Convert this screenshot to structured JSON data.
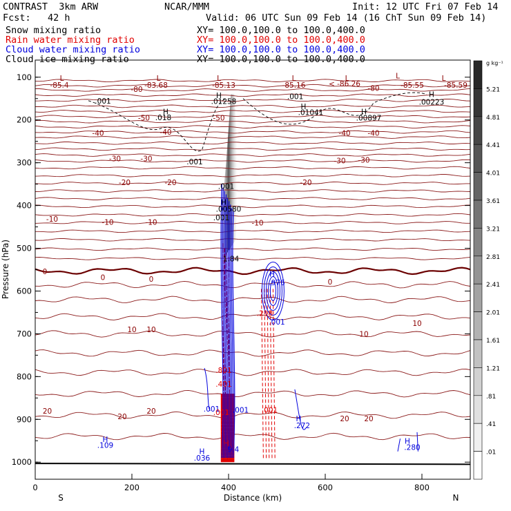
{
  "header": {
    "model": "CONTRAST  3km ARW",
    "center": "NCAR/MMM",
    "init": "Init: 12 UTC Fri 07 Feb 14",
    "fcst": "Fcst:   42 h",
    "valid": "Valid: 06 UTC Sun 09 Feb 14 (16 ChT Sun 09 Feb 14)",
    "fields": [
      {
        "name": "Snow mixing ratio",
        "xy": "XY= 100.0,100.0 to 100.0,400.0",
        "color": "#000000"
      },
      {
        "name": "Rain water mixing ratio",
        "xy": "XY= 100.0,100.0 to 100.0,400.0",
        "color": "#e00000"
      },
      {
        "name": "Cloud water mixing ratio",
        "xy": "XY= 100.0,100.0 to 100.0,400.0",
        "color": "#0000dd"
      },
      {
        "name": "Cloud ice mixing ratio",
        "xy": "XY= 100.0,100.0 to 100.0,400.0",
        "color": "#000000"
      }
    ]
  },
  "chart_data": {
    "type": "heatmap",
    "xlabel": "Distance (km)",
    "ylabel": "Pressure (hPa)",
    "xlim": [
      0,
      900
    ],
    "ylim": [
      1040,
      60
    ],
    "x_ticks": [
      "0",
      "200",
      "400",
      "600",
      "800"
    ],
    "y_ticks": [
      "100",
      "200",
      "300",
      "400",
      "500",
      "600",
      "700",
      "800",
      "900",
      "1000"
    ],
    "x_tick_values": [
      0,
      200,
      400,
      600,
      800
    ],
    "y_tick_values": [
      100,
      200,
      300,
      400,
      500,
      600,
      700,
      800,
      900,
      1000
    ],
    "left_end_label": "S",
    "right_end_label": "N",
    "colorbar": {
      "unit": "g kg⁻¹",
      "levels": [
        "5.21",
        "4.81",
        "4.41",
        "4.01",
        "3.61",
        "3.21",
        "2.81",
        "2.41",
        "2.01",
        "1.61",
        "1.21",
        ".81",
        ".41",
        ".01"
      ]
    },
    "temperature_labels": [
      {
        "x": 50,
        "p": 118,
        "text": "-85.4"
      },
      {
        "x": 250,
        "p": 118,
        "text": "-83.68"
      },
      {
        "x": 390,
        "p": 118,
        "text": "-85.13"
      },
      {
        "x": 535,
        "p": 118,
        "text": "-85.16"
      },
      {
        "x": 640,
        "p": 115,
        "text": "< -86.26"
      },
      {
        "x": 780,
        "p": 118,
        "text": "-85.55"
      },
      {
        "x": 870,
        "p": 118,
        "text": "-85.59"
      },
      {
        "x": 210,
        "p": 128,
        "text": "-80"
      },
      {
        "x": 700,
        "p": 125,
        "text": "-80"
      },
      {
        "x": 225,
        "p": 195,
        "text": "-50"
      },
      {
        "x": 380,
        "p": 195,
        "text": "-50"
      },
      {
        "x": 130,
        "p": 230,
        "text": "-40"
      },
      {
        "x": 270,
        "p": 228,
        "text": "-40"
      },
      {
        "x": 640,
        "p": 230,
        "text": "-40"
      },
      {
        "x": 700,
        "p": 230,
        "text": "-40"
      },
      {
        "x": 165,
        "p": 290,
        "text": "-30"
      },
      {
        "x": 230,
        "p": 290,
        "text": "-30"
      },
      {
        "x": 630,
        "p": 295,
        "text": "-30"
      },
      {
        "x": 680,
        "p": 293,
        "text": "-30"
      },
      {
        "x": 185,
        "p": 346,
        "text": "-20"
      },
      {
        "x": 280,
        "p": 346,
        "text": "-20"
      },
      {
        "x": 560,
        "p": 346,
        "text": "-20"
      },
      {
        "x": 35,
        "p": 431,
        "text": "-10"
      },
      {
        "x": 150,
        "p": 439,
        "text": "-10"
      },
      {
        "x": 240,
        "p": 439,
        "text": "-10"
      },
      {
        "x": 460,
        "p": 440,
        "text": "-10"
      },
      {
        "x": 20,
        "p": 554,
        "text": "0"
      },
      {
        "x": 140,
        "p": 568,
        "text": "0"
      },
      {
        "x": 240,
        "p": 572,
        "text": "0"
      },
      {
        "x": 610,
        "p": 578,
        "text": "0"
      },
      {
        "x": 200,
        "p": 690,
        "text": "10"
      },
      {
        "x": 240,
        "p": 690,
        "text": "10"
      },
      {
        "x": 680,
        "p": 700,
        "text": "10"
      },
      {
        "x": 790,
        "p": 675,
        "text": "10"
      },
      {
        "x": 25,
        "p": 880,
        "text": "20"
      },
      {
        "x": 180,
        "p": 893,
        "text": "20"
      },
      {
        "x": 240,
        "p": 880,
        "text": "20"
      },
      {
        "x": 640,
        "p": 898,
        "text": "20"
      },
      {
        "x": 690,
        "p": 898,
        "text": "20"
      }
    ],
    "extrema_labels": [
      {
        "x": 55,
        "p": 102,
        "text": "L",
        "color": "#8b0000"
      },
      {
        "x": 255,
        "p": 102,
        "text": "L",
        "color": "#8b0000"
      },
      {
        "x": 380,
        "p": 102,
        "text": "L",
        "color": "#8b0000"
      },
      {
        "x": 535,
        "p": 102,
        "text": "L",
        "color": "#8b0000"
      },
      {
        "x": 645,
        "p": 102,
        "text": "L",
        "color": "#8b0000"
      },
      {
        "x": 750,
        "p": 96,
        "text": "L",
        "color": "#8b0000"
      },
      {
        "x": 845,
        "p": 102,
        "text": "L",
        "color": "#8b0000"
      },
      {
        "x": 380,
        "p": 142,
        "text": "H",
        "color": "#000000"
      },
      {
        "x": 390,
        "p": 156,
        "text": ".01258",
        "color": "#000000"
      },
      {
        "x": 820,
        "p": 140,
        "text": "H",
        "color": "#000000"
      },
      {
        "x": 820,
        "p": 158,
        "text": ".00223",
        "color": "#000000"
      },
      {
        "x": 555,
        "p": 168,
        "text": "H",
        "color": "#000000"
      },
      {
        "x": 570,
        "p": 182,
        "text": ".01041",
        "color": "#000000"
      },
      {
        "x": 680,
        "p": 180,
        "text": "H",
        "color": "#000000"
      },
      {
        "x": 690,
        "p": 195,
        "text": ".00897",
        "color": "#000000"
      },
      {
        "x": 270,
        "p": 180,
        "text": "H",
        "color": "#000000"
      },
      {
        "x": 265,
        "p": 194,
        "text": ".018",
        "color": "#000000"
      },
      {
        "x": 140,
        "p": 155,
        "text": ".001",
        "color": "#000000"
      },
      {
        "x": 330,
        "p": 297,
        "text": ".001",
        "color": "#000000"
      },
      {
        "x": 538,
        "p": 145,
        "text": ".001",
        "color": "#000000"
      },
      {
        "x": 395,
        "p": 355,
        "text": ".001",
        "color": "#000000"
      },
      {
        "x": 390,
        "p": 392,
        "text": "H",
        "color": "#000000"
      },
      {
        "x": 400,
        "p": 408,
        "text": ".00580",
        "color": "#000000"
      },
      {
        "x": 385,
        "p": 428,
        "text": ".001",
        "color": "#000000"
      },
      {
        "x": 405,
        "p": 524,
        "text": "1.84",
        "color": "#000000"
      },
      {
        "x": 490,
        "p": 560,
        "text": "H",
        "color": "#0000dd"
      },
      {
        "x": 500,
        "p": 580,
        "text": ".976",
        "color": "#0000dd"
      },
      {
        "x": 475,
        "p": 652,
        "text": ".218",
        "color": "#e00000"
      },
      {
        "x": 500,
        "p": 672,
        "text": ".001",
        "color": "#0000dd"
      },
      {
        "x": 390,
        "p": 785,
        "text": ".801",
        "color": "#e00000"
      },
      {
        "x": 390,
        "p": 817,
        "text": ".401",
        "color": "#e00000"
      },
      {
        "x": 365,
        "p": 875,
        "text": ".001",
        "color": "#0000dd"
      },
      {
        "x": 385,
        "p": 883,
        "text": ".001",
        "color": "#e00000"
      },
      {
        "x": 425,
        "p": 878,
        "text": ".001",
        "color": "#0000dd"
      },
      {
        "x": 485,
        "p": 878,
        "text": ".001",
        "color": "#e00000"
      },
      {
        "x": 545,
        "p": 898,
        "text": "H",
        "color": "#0000dd"
      },
      {
        "x": 552,
        "p": 914,
        "text": ".272",
        "color": "#0000dd"
      },
      {
        "x": 145,
        "p": 946,
        "text": "H",
        "color": "#0000dd"
      },
      {
        "x": 145,
        "p": 960,
        "text": ".109",
        "color": "#0000dd"
      },
      {
        "x": 345,
        "p": 975,
        "text": "H",
        "color": "#0000dd"
      },
      {
        "x": 345,
        "p": 990,
        "text": ".036",
        "color": "#0000dd"
      },
      {
        "x": 395,
        "p": 955,
        "text": "H",
        "color": "#e00000"
      },
      {
        "x": 410,
        "p": 970,
        "text": "9.4",
        "color": "#0000dd"
      },
      {
        "x": 770,
        "p": 950,
        "text": "H",
        "color": "#0000dd"
      },
      {
        "x": 780,
        "p": 965,
        "text": ".280",
        "color": "#0000dd"
      }
    ]
  }
}
